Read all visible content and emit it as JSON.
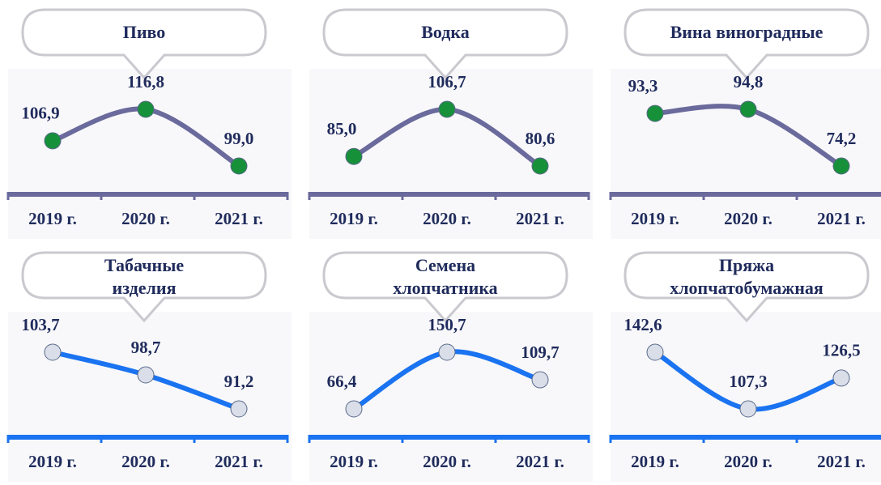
{
  "chart_data": [
    {
      "type": "line",
      "title": "Пиво",
      "categories": [
        "2019 г.",
        "2020 г.",
        "2021 г."
      ],
      "values": [
        106.9,
        116.8,
        99.0
      ],
      "value_labels": [
        "106,9",
        "116,8",
        "99,0"
      ],
      "color": "#6a6a9c",
      "marker_color": "#17903a"
    },
    {
      "type": "line",
      "title": "Водка",
      "categories": [
        "2019 г.",
        "2020 г.",
        "2021 г."
      ],
      "values": [
        85.0,
        106.7,
        80.6
      ],
      "value_labels": [
        "85,0",
        "106,7",
        "80,6"
      ],
      "color": "#6a6a9c",
      "marker_color": "#17903a"
    },
    {
      "type": "line",
      "title": "Вина виноградные",
      "categories": [
        "2019 г.",
        "2020 г.",
        "2021 г."
      ],
      "values": [
        93.3,
        94.8,
        74.2
      ],
      "value_labels": [
        "93,3",
        "94,8",
        "74,2"
      ],
      "color": "#6a6a9c",
      "marker_color": "#17903a"
    },
    {
      "type": "line",
      "title": "Табачные\nизделия",
      "categories": [
        "2019 г.",
        "2020 г.",
        "2021 г."
      ],
      "values": [
        103.7,
        98.7,
        91.2
      ],
      "value_labels": [
        "103,7",
        "98,7",
        "91,2"
      ],
      "color": "#1a73f0",
      "marker_color": "#d9dee9"
    },
    {
      "type": "line",
      "title": "Семена\nхлопчатника",
      "categories": [
        "2019 г.",
        "2020 г.",
        "2021 г."
      ],
      "values": [
        66.4,
        150.7,
        109.7
      ],
      "value_labels": [
        "66,4",
        "150,7",
        "109,7"
      ],
      "color": "#1a73f0",
      "marker_color": "#d9dee9"
    },
    {
      "type": "line",
      "title": "Пряжа\nхлопчатобумажная",
      "categories": [
        "2019 г.",
        "2020 г.",
        "2021 г."
      ],
      "values": [
        142.6,
        107.3,
        126.5
      ],
      "value_labels": [
        "142,6",
        "107,3",
        "126,5"
      ],
      "color": "#1a73f0",
      "marker_color": "#d9dee9"
    }
  ]
}
